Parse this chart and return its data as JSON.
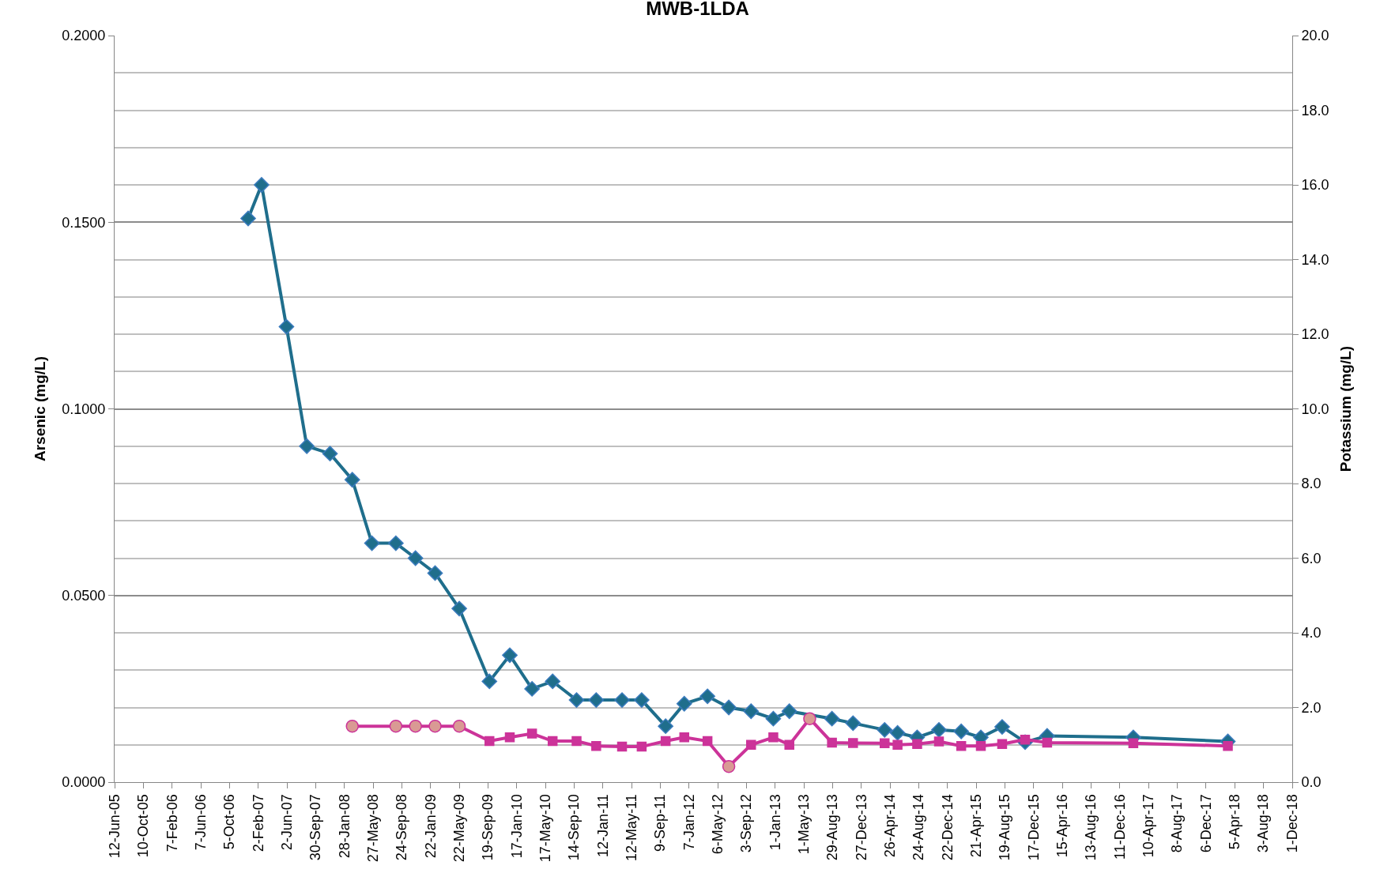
{
  "chart_data": {
    "type": "line",
    "title": "MWB-1LDA",
    "ylabel": "Arsenic (mg/L)",
    "y2label": "Potassium (mg/L)",
    "xlim": [
      "2005-06-12",
      "2018-12-01"
    ],
    "xticks": [
      {
        "value": "2005-06-12",
        "label": "12-Jun-05"
      },
      {
        "value": "2005-10-10",
        "label": "10-Oct-05"
      },
      {
        "value": "2006-02-07",
        "label": "7-Feb-06"
      },
      {
        "value": "2006-06-07",
        "label": "7-Jun-06"
      },
      {
        "value": "2006-10-05",
        "label": "5-Oct-06"
      },
      {
        "value": "2007-02-02",
        "label": "2-Feb-07"
      },
      {
        "value": "2007-06-02",
        "label": "2-Jun-07"
      },
      {
        "value": "2007-09-30",
        "label": "30-Sep-07"
      },
      {
        "value": "2008-01-28",
        "label": "28-Jan-08"
      },
      {
        "value": "2008-05-27",
        "label": "27-May-08"
      },
      {
        "value": "2008-09-24",
        "label": "24-Sep-08"
      },
      {
        "value": "2009-01-22",
        "label": "22-Jan-09"
      },
      {
        "value": "2009-05-22",
        "label": "22-May-09"
      },
      {
        "value": "2009-09-19",
        "label": "19-Sep-09"
      },
      {
        "value": "2010-01-17",
        "label": "17-Jan-10"
      },
      {
        "value": "2010-05-17",
        "label": "17-May-10"
      },
      {
        "value": "2010-09-14",
        "label": "14-Sep-10"
      },
      {
        "value": "2011-01-12",
        "label": "12-Jan-11"
      },
      {
        "value": "2011-05-12",
        "label": "12-May-11"
      },
      {
        "value": "2011-09-09",
        "label": "9-Sep-11"
      },
      {
        "value": "2012-01-07",
        "label": "7-Jan-12"
      },
      {
        "value": "2012-05-06",
        "label": "6-May-12"
      },
      {
        "value": "2012-09-03",
        "label": "3-Sep-12"
      },
      {
        "value": "2013-01-01",
        "label": "1-Jan-13"
      },
      {
        "value": "2013-05-01",
        "label": "1-May-13"
      },
      {
        "value": "2013-08-29",
        "label": "29-Aug-13"
      },
      {
        "value": "2013-12-27",
        "label": "27-Dec-13"
      },
      {
        "value": "2014-04-26",
        "label": "26-Apr-14"
      },
      {
        "value": "2014-08-24",
        "label": "24-Aug-14"
      },
      {
        "value": "2014-12-22",
        "label": "22-Dec-14"
      },
      {
        "value": "2015-04-21",
        "label": "21-Apr-15"
      },
      {
        "value": "2015-08-19",
        "label": "19-Aug-15"
      },
      {
        "value": "2015-12-17",
        "label": "17-Dec-15"
      },
      {
        "value": "2016-04-15",
        "label": "15-Apr-16"
      },
      {
        "value": "2016-08-13",
        "label": "13-Aug-16"
      },
      {
        "value": "2016-12-11",
        "label": "11-Dec-16"
      },
      {
        "value": "2017-04-10",
        "label": "10-Apr-17"
      },
      {
        "value": "2017-08-08",
        "label": "8-Aug-17"
      },
      {
        "value": "2017-12-06",
        "label": "6-Dec-17"
      },
      {
        "value": "2018-04-05",
        "label": "5-Apr-18"
      },
      {
        "value": "2018-08-03",
        "label": "3-Aug-18"
      },
      {
        "value": "2018-12-01",
        "label": "1-Dec-18"
      }
    ],
    "ylim": [
      0,
      0.2
    ],
    "yticks": [
      {
        "value": 0,
        "label": "0.0000"
      },
      {
        "value": 0.05,
        "label": "0.0500"
      },
      {
        "value": 0.1,
        "label": "0.1000"
      },
      {
        "value": 0.15,
        "label": "0.1500"
      },
      {
        "value": 0.2,
        "label": "0.2000"
      }
    ],
    "y2lim": [
      0,
      20
    ],
    "y2ticks": [
      {
        "value": 0,
        "label": "0.0"
      },
      {
        "value": 2,
        "label": "2.0"
      },
      {
        "value": 4,
        "label": "4.0"
      },
      {
        "value": 6,
        "label": "6.0"
      },
      {
        "value": 8,
        "label": "8.0"
      },
      {
        "value": 10,
        "label": "10.0"
      },
      {
        "value": 12,
        "label": "12.0"
      },
      {
        "value": 14,
        "label": "14.0"
      },
      {
        "value": 16,
        "label": "16.0"
      },
      {
        "value": 18,
        "label": "18.0"
      },
      {
        "value": 20,
        "label": "20.0"
      }
    ],
    "grid": "y",
    "series": [
      {
        "color": "#1f6e8c",
        "marker": "diamond",
        "x": [
          "2006-12-22",
          "2007-02-16",
          "2007-05-31",
          "2007-08-24",
          "2007-11-29",
          "2008-03-01",
          "2008-05-22",
          "2008-08-30",
          "2008-11-20",
          "2009-02-10",
          "2009-05-22",
          "2009-09-25",
          "2009-12-19",
          "2010-03-22",
          "2010-06-16",
          "2010-09-24",
          "2010-12-15",
          "2011-04-02",
          "2011-06-23",
          "2011-10-01",
          "2011-12-18",
          "2012-03-24",
          "2012-06-21",
          "2012-09-22",
          "2012-12-24",
          "2013-03-01",
          "2013-08-26",
          "2013-11-22",
          "2014-04-03",
          "2014-05-27",
          "2014-08-17",
          "2014-11-16",
          "2015-02-17",
          "2015-05-10",
          "2015-08-07",
          "2015-11-11",
          "2016-02-11",
          "2017-02-05",
          "2018-03-07"
        ],
        "values": [
          0.151,
          0.16,
          0.122,
          0.09,
          0.088,
          0.081,
          0.064,
          0.064,
          0.06,
          0.056,
          0.0465,
          0.027,
          0.034,
          0.025,
          0.027,
          0.022,
          0.022,
          0.022,
          0.022,
          0.015,
          0.021,
          0.023,
          0.02,
          0.019,
          0.017,
          0.019,
          0.017,
          0.0158,
          0.014,
          0.0132,
          0.012,
          0.014,
          0.0136,
          0.012,
          0.0148,
          0.0107,
          0.0124,
          0.012,
          0.0109
        ]
      },
      {
        "type": "line",
        "axis": "y2",
        "color": "#cc3399",
        "marker": "none",
        "x": [
          "2008-03-01",
          "2008-08-30",
          "2008-11-20",
          "2009-02-10",
          "2009-05-22",
          "2009-09-25",
          "2009-12-19",
          "2010-03-22",
          "2010-06-16",
          "2010-09-24",
          "2010-12-15",
          "2011-04-02",
          "2011-06-23",
          "2011-10-01",
          "2011-12-18",
          "2012-03-24",
          "2012-06-21",
          "2012-09-22",
          "2012-12-24",
          "2013-03-01",
          "2013-05-25",
          "2013-08-26",
          "2013-11-22",
          "2014-04-03",
          "2014-05-27",
          "2014-08-17",
          "2014-11-16",
          "2015-02-17",
          "2015-05-10",
          "2015-08-07",
          "2015-11-11",
          "2016-02-11",
          "2017-02-05",
          "2018-03-07"
        ],
        "values": [
          1.5,
          1.5,
          1.5,
          1.5,
          1.5,
          1.1,
          1.2,
          1.3,
          1.1,
          1.1,
          0.97,
          0.95,
          0.95,
          1.1,
          1.2,
          1.1,
          0.42,
          1.0,
          1.2,
          1.0,
          1.7,
          1.06,
          1.05,
          1.04,
          1.0,
          1.02,
          1.09,
          0.97,
          0.97,
          1.02,
          1.14,
          1.06,
          1.04,
          0.97
        ]
      },
      {
        "type": "scatter",
        "axis": "y2",
        "color": "#cc3399",
        "marker": "square",
        "x": [
          "2009-09-25",
          "2009-12-19",
          "2010-03-22",
          "2010-06-16",
          "2010-09-24",
          "2010-12-15",
          "2011-04-02",
          "2011-06-23",
          "2011-10-01",
          "2011-12-18",
          "2012-03-24",
          "2012-09-22",
          "2012-12-24",
          "2013-03-01",
          "2013-08-26",
          "2013-11-22",
          "2014-04-03",
          "2014-05-27",
          "2014-08-17",
          "2014-11-16",
          "2015-02-17",
          "2015-05-10",
          "2015-08-07",
          "2015-11-11",
          "2016-02-11",
          "2017-02-05",
          "2018-03-07"
        ],
        "values": [
          1.1,
          1.2,
          1.3,
          1.1,
          1.1,
          0.97,
          0.95,
          0.95,
          1.1,
          1.2,
          1.1,
          1.0,
          1.2,
          1.0,
          1.06,
          1.05,
          1.04,
          1.0,
          1.02,
          1.09,
          0.97,
          0.97,
          1.02,
          1.14,
          1.06,
          1.04,
          0.97
        ]
      },
      {
        "type": "scatter",
        "axis": "y2",
        "color": "#d99a94",
        "marker": "circle",
        "x": [
          "2008-03-01",
          "2008-08-30",
          "2008-11-20",
          "2009-02-10",
          "2009-05-22",
          "2012-06-21",
          "2013-05-25"
        ],
        "values": [
          1.5,
          1.5,
          1.5,
          1.5,
          1.5,
          0.42,
          1.7
        ]
      }
    ]
  }
}
